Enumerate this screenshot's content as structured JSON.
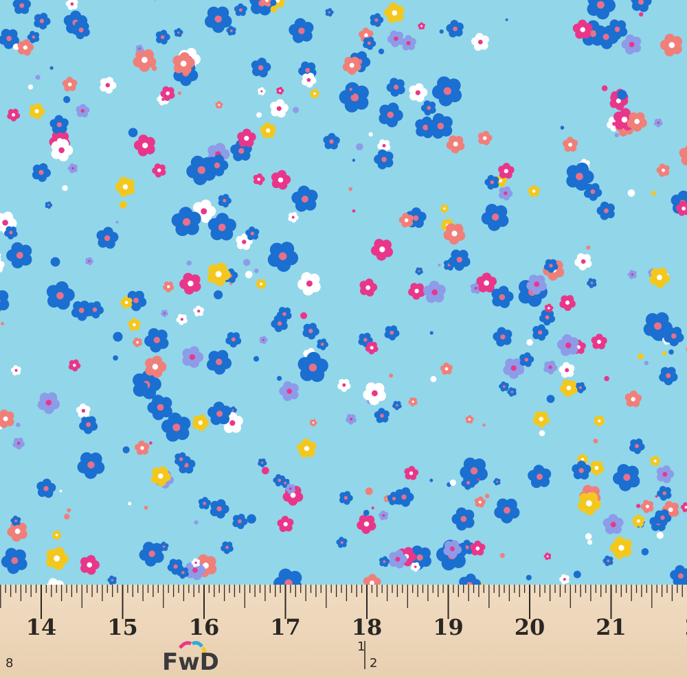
{
  "ruler": {
    "inch_labels": [
      "14",
      "15",
      "16",
      "17",
      "18",
      "19",
      "20",
      "21",
      "2"
    ],
    "fraction_labels": [
      "8",
      "1",
      "2"
    ]
  },
  "logo": "FwD"
}
